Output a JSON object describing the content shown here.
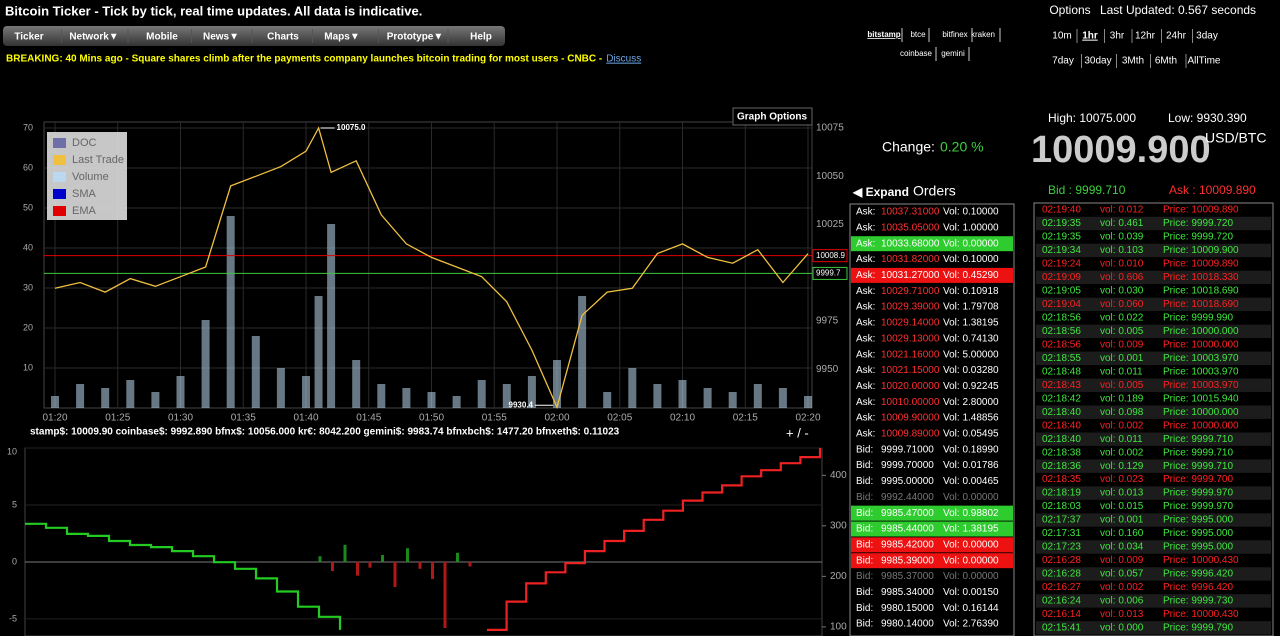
{
  "header": {
    "title": "Bitcoin Ticker - Tick by tick, real time updates. All data is indicative.",
    "nav": [
      "Ticker",
      "Network▼",
      "Mobile",
      "News▼",
      "Charts",
      "Maps▼",
      "Prototype▼",
      "Help"
    ],
    "breaking": "BREAKING: 40 Mins ago - Square shares climb after the payments company launches bitcoin trading for most users - CNBC -",
    "discuss": "Discuss"
  },
  "exchanges": {
    "row1": [
      "bitstamp",
      "btce",
      "bitfinex",
      "kraken"
    ],
    "row2": [
      "coinbase",
      "gemini"
    ],
    "active": 0
  },
  "options": "Options",
  "last_updated": "Last Updated: 0.567 seconds",
  "timeframes": {
    "row1": [
      "10m",
      "1hr",
      "3hr",
      "12hr",
      "24hr",
      "3day"
    ],
    "row2": [
      "7day",
      "30day",
      "3Mth",
      "6Mth",
      "AllTime"
    ],
    "active": 1
  },
  "stats": {
    "high": "High: 10075.000",
    "low": "Low: 9930.390",
    "price": "10009.900",
    "unit": "USD/BTC",
    "change_label": "Change:",
    "change": "0.20 %"
  },
  "orders": {
    "expand": "◀ Expand",
    "title": "Orders",
    "rows": [
      {
        "side": "Ask:",
        "price": "10037.31000",
        "vol": "Vol: 0.10000"
      },
      {
        "side": "Ask:",
        "price": "10035.05000",
        "vol": "Vol: 1.00000"
      },
      {
        "side": "Ask:",
        "price": "10033.68000",
        "vol": "Vol: 0.00000",
        "highlight": "green"
      },
      {
        "side": "Ask:",
        "price": "10031.82000",
        "vol": "Vol: 0.10000"
      },
      {
        "side": "Ask:",
        "price": "10031.27000",
        "vol": "Vol: 0.45290",
        "highlight": "red"
      },
      {
        "side": "Ask:",
        "price": "10029.71000",
        "vol": "Vol: 0.10918"
      },
      {
        "side": "Ask:",
        "price": "10029.39000",
        "vol": "Vol: 1.79708"
      },
      {
        "side": "Ask:",
        "price": "10029.14000",
        "vol": "Vol: 1.38195"
      },
      {
        "side": "Ask:",
        "price": "10029.13000",
        "vol": "Vol: 0.74130"
      },
      {
        "side": "Ask:",
        "price": "10021.16000",
        "vol": "Vol: 5.00000"
      },
      {
        "side": "Ask:",
        "price": "10021.15000",
        "vol": "Vol: 0.03280"
      },
      {
        "side": "Ask:",
        "price": "10020.00000",
        "vol": "Vol: 0.92245"
      },
      {
        "side": "Ask:",
        "price": "10010.00000",
        "vol": "Vol: 2.80000"
      },
      {
        "side": "Ask:",
        "price": "10009.90000",
        "vol": "Vol: 1.48856"
      },
      {
        "side": "Ask:",
        "price": "10009.89000",
        "vol": "Vol: 0.05495"
      },
      {
        "side": "Bid:",
        "price": "9999.71000",
        "vol": "Vol: 0.18990"
      },
      {
        "side": "Bid:",
        "price": "9999.70000",
        "vol": "Vol: 0.01786"
      },
      {
        "side": "Bid:",
        "price": "9995.00000",
        "vol": "Vol: 0.00465"
      },
      {
        "side": "Bid:",
        "price": "9992.44000",
        "vol": "Vol: 0.00000",
        "highlight": "dim"
      },
      {
        "side": "Bid:",
        "price": "9985.47000",
        "vol": "Vol: 0.98802",
        "highlight": "green"
      },
      {
        "side": "Bid:",
        "price": "9985.44000",
        "vol": "Vol: 1.38195",
        "highlight": "green"
      },
      {
        "side": "Bid:",
        "price": "9985.42000",
        "vol": "Vol: 0.00000",
        "highlight": "red"
      },
      {
        "side": "Bid:",
        "price": "9985.39000",
        "vol": "Vol: 0.00000",
        "highlight": "red"
      },
      {
        "side": "Bid:",
        "price": "9985.37000",
        "vol": "Vol: 0.00000",
        "highlight": "dim"
      },
      {
        "side": "Bid:",
        "price": "9985.34000",
        "vol": "Vol: 0.00150"
      },
      {
        "side": "Bid:",
        "price": "9980.15000",
        "vol": "Vol: 0.16144"
      },
      {
        "side": "Bid:",
        "price": "9980.14000",
        "vol": "Vol: 2.76390"
      }
    ]
  },
  "trades": {
    "bid": "Bid : 9999.710",
    "ask": "Ask : 10009.890",
    "rows": [
      {
        "time": "02:19:40",
        "vol": "vol: 0.012",
        "price": "Price: 10009.890",
        "side": "red"
      },
      {
        "time": "02:19:35",
        "vol": "vol: 0.461",
        "price": "Price: 9999.720",
        "side": "green"
      },
      {
        "time": "02:19:35",
        "vol": "vol: 0.039",
        "price": "Price: 9999.720",
        "side": "green"
      },
      {
        "time": "02:19:34",
        "vol": "vol: 0.103",
        "price": "Price: 10009.900",
        "side": "green"
      },
      {
        "time": "02:19:24",
        "vol": "vol: 0.010",
        "price": "Price: 10009.890",
        "side": "red"
      },
      {
        "time": "02:19:09",
        "vol": "vol: 0.606",
        "price": "Price: 10018.330",
        "side": "red"
      },
      {
        "time": "02:19:05",
        "vol": "vol: 0.030",
        "price": "Price: 10018.690",
        "side": "green"
      },
      {
        "time": "02:19:04",
        "vol": "vol: 0.060",
        "price": "Price: 10018.690",
        "side": "red"
      },
      {
        "time": "02:18:56",
        "vol": "vol: 0.022",
        "price": "Price: 9999.990",
        "side": "green"
      },
      {
        "time": "02:18:56",
        "vol": "vol: 0.005",
        "price": "Price: 10000.000",
        "side": "green"
      },
      {
        "time": "02:18:56",
        "vol": "vol: 0.009",
        "price": "Price: 10000.000",
        "side": "red"
      },
      {
        "time": "02:18:55",
        "vol": "vol: 0.001",
        "price": "Price: 10003.970",
        "side": "green"
      },
      {
        "time": "02:18:48",
        "vol": "vol: 0.011",
        "price": "Price: 10003.970",
        "side": "green"
      },
      {
        "time": "02:18:43",
        "vol": "vol: 0.005",
        "price": "Price: 10003.970",
        "side": "red"
      },
      {
        "time": "02:18:42",
        "vol": "vol: 0.189",
        "price": "Price: 10015.940",
        "side": "green"
      },
      {
        "time": "02:18:40",
        "vol": "vol: 0.098",
        "price": "Price: 10000.000",
        "side": "green"
      },
      {
        "time": "02:18:40",
        "vol": "vol: 0.002",
        "price": "Price: 10000.000",
        "side": "red"
      },
      {
        "time": "02:18:40",
        "vol": "vol: 0.011",
        "price": "Price: 9999.710",
        "side": "green"
      },
      {
        "time": "02:18:38",
        "vol": "vol: 0.002",
        "price": "Price: 9999.710",
        "side": "green"
      },
      {
        "time": "02:18:36",
        "vol": "vol: 0.129",
        "price": "Price: 9999.710",
        "side": "green"
      },
      {
        "time": "02:18:35",
        "vol": "vol: 0.023",
        "price": "Price: 9999.700",
        "side": "red"
      },
      {
        "time": "02:18:19",
        "vol": "vol: 0.013",
        "price": "Price: 9999.970",
        "side": "green"
      },
      {
        "time": "02:18:03",
        "vol": "vol: 0.015",
        "price": "Price: 9999.970",
        "side": "green"
      },
      {
        "time": "02:17:37",
        "vol": "vol: 0.001",
        "price": "Price: 9995.000",
        "side": "green"
      },
      {
        "time": "02:17:31",
        "vol": "vol: 0.160",
        "price": "Price: 9995.000",
        "side": "green"
      },
      {
        "time": "02:17:23",
        "vol": "vol: 0.034",
        "price": "Price: 9995.000",
        "side": "green"
      },
      {
        "time": "02:16:28",
        "vol": "vol: 0.009",
        "price": "Price: 10000.430",
        "side": "red"
      },
      {
        "time": "02:16:28",
        "vol": "vol: 0.057",
        "price": "Price: 9996.420",
        "side": "green"
      },
      {
        "time": "02:16:27",
        "vol": "vol: 0.002",
        "price": "Price: 9996.420",
        "side": "red"
      },
      {
        "time": "02:16:24",
        "vol": "vol: 0.006",
        "price": "Price: 9999.730",
        "side": "green"
      },
      {
        "time": "02:16:14",
        "vol": "vol: 0.013",
        "price": "Price: 10000.430",
        "side": "red"
      },
      {
        "time": "02:15:41",
        "vol": "vol: 0.000",
        "price": "Price: 9999.790",
        "side": "green"
      }
    ]
  },
  "ticker_line": "stamp$: 10009.90  coinbase$: 9992.890  bfnx$: 10056.000  kr€: 8042.200  gemini$: 9983.74  bfnxbch$: 1477.20  bfnxeth$: 0.11023",
  "zoom": "+ / -",
  "chart_data": [
    {
      "type": "line",
      "graph_options": "Graph Options",
      "legend": [
        {
          "name": "DOC",
          "color": "#6f6fa8"
        },
        {
          "name": "Last Trade",
          "color": "#f0c040"
        },
        {
          "name": "Volume",
          "color": "#bcd8f0"
        },
        {
          "name": "SMA",
          "color": "#0000cc"
        },
        {
          "name": "EMA",
          "color": "#e00000"
        }
      ],
      "x": [
        "01:20",
        "01:22",
        "01:24",
        "01:26",
        "01:28",
        "01:30",
        "01:32",
        "01:34",
        "01:36",
        "01:38",
        "01:40",
        "01:41",
        "01:42",
        "01:44",
        "01:46",
        "01:48",
        "01:50",
        "01:52",
        "01:54",
        "01:56",
        "01:58",
        "02:00",
        "02:02",
        "02:04",
        "02:06",
        "02:08",
        "02:10",
        "02:12",
        "02:14",
        "02:16",
        "02:18",
        "02:20"
      ],
      "xticks": [
        "01:20",
        "01:25",
        "01:30",
        "01:35",
        "01:40",
        "01:45",
        "01:50",
        "01:55",
        "02:00",
        "02:05",
        "02:10",
        "02:15",
        "02:20"
      ],
      "series": [
        {
          "name": "Last Trade",
          "color": "#f0c040",
          "axis": "y2",
          "values": [
            9992,
            9995,
            9990,
            9997,
            9993,
            9998,
            10003,
            10045,
            10050,
            10055,
            10063,
            10075,
            10052,
            10058,
            10030,
            10015,
            10008,
            10003,
            9998,
            9985,
            9960,
            9930.4,
            9978,
            9990,
            9992,
            10010,
            10015,
            10008,
            10005,
            10012,
            9995,
            10009.9
          ]
        },
        {
          "name": "Volume",
          "color": "#bcd8f0",
          "values": [
            3,
            6,
            5,
            7,
            4,
            8,
            22,
            48,
            18,
            10,
            8,
            28,
            46,
            12,
            6,
            5,
            4,
            3,
            7,
            6,
            8,
            12,
            28,
            4,
            10,
            6,
            7,
            5,
            4,
            6,
            5,
            3
          ]
        }
      ],
      "ylim": [
        0,
        70
      ],
      "yticks": [
        10,
        20,
        30,
        40,
        50,
        60,
        70
      ],
      "y2lim": [
        9930,
        10075
      ],
      "y2ticks": [
        9950,
        9975,
        10025,
        10050,
        10075
      ],
      "hlines": [
        {
          "value": 10008.9,
          "color": "#e00000"
        },
        {
          "value": 9999.7,
          "color": "#3cc83c"
        }
      ],
      "annotations": [
        {
          "x": "01:41",
          "value": 10075,
          "label": "10075.0"
        },
        {
          "x": "02:00",
          "value": 9930.4,
          "label": "9930.4"
        }
      ],
      "grid": true
    },
    {
      "type": "line",
      "series": [
        {
          "color": "#22cc22",
          "axis": "y2",
          "values": [
            304,
            296,
            284,
            280,
            270,
            262,
            258,
            250,
            240,
            228,
            215,
            196,
            170,
            140,
            120,
            94
          ]
        },
        {
          "color": "#ee2222",
          "axis": "y2",
          "values": [
            94,
            150,
            186,
            208,
            226,
            250,
            270,
            290,
            312,
            330,
            350,
            366,
            380,
            398,
            410,
            424,
            436,
            454
          ]
        }
      ],
      "bars": [
        0.5,
        -0.8,
        1.5,
        -1.2,
        -0.5,
        0.6,
        -2.2,
        1.2,
        -0.6,
        -1.5,
        -5.8,
        0.8,
        -0.4
      ],
      "ylim": [
        -6.5,
        10
      ],
      "yticks": [
        -5,
        0,
        5,
        10
      ],
      "y2lim": [
        82,
        454
      ],
      "y2ticks": [
        100,
        200,
        300,
        400
      ]
    }
  ]
}
